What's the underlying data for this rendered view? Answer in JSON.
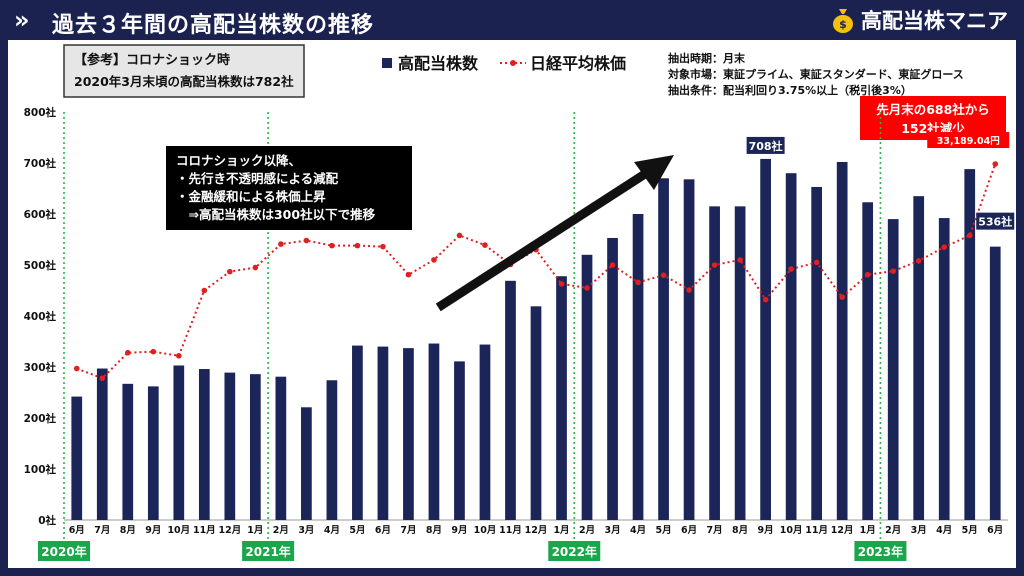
{
  "header": {
    "title": "過去３年間の高配当株数の推移",
    "brand": "高配当株マニア"
  },
  "notes": {
    "reference_line1": "【参考】コロナショック時",
    "reference_line2": "2020年3月末頃の高配当株数は782社",
    "callout_lines": [
      "コロナショック以降、",
      "・先行き不透明感による減配",
      "・金融緩和による株価上昇",
      "　⇒高配当株数は300社以下で推移"
    ],
    "red_box_line1": "先月末の688社から",
    "red_box_line2": "152社減少",
    "conditions": [
      "抽出時期：月末",
      "対象市場：東証プライム、東証スタンダード、東証グロース",
      "抽出条件：配当利回り3.75%以上（税引後3%）"
    ]
  },
  "colors": {
    "header_bg": "#1b2250",
    "bar": "#1b2557",
    "nikkei": "#e02020",
    "year_box": "#1aa64a",
    "red_box": "#ff0000",
    "divider": "#2db34a"
  },
  "chart_data": {
    "type": "bar",
    "categories": [
      "6月",
      "7月",
      "8月",
      "9月",
      "10月",
      "11月",
      "12月",
      "1月",
      "2月",
      "3月",
      "4月",
      "5月",
      "6月",
      "7月",
      "8月",
      "9月",
      "10月",
      "11月",
      "12月",
      "1月",
      "2月",
      "3月",
      "4月",
      "5月",
      "6月",
      "7月",
      "8月",
      "9月",
      "10月",
      "11月",
      "12月",
      "1月",
      "2月",
      "3月",
      "4月",
      "5月",
      "6月"
    ],
    "y_ticks": [
      "0社",
      "100社",
      "200社",
      "300社",
      "400社",
      "500社",
      "600社",
      "700社",
      "800社"
    ],
    "ylim": [
      0,
      800
    ],
    "legend": "top-center",
    "series": [
      {
        "name": "高配当株数",
        "type": "bar",
        "values": [
          242,
          297,
          267,
          262,
          303,
          296,
          289,
          286,
          281,
          221,
          274,
          342,
          340,
          337,
          346,
          311,
          344,
          469,
          419,
          478,
          520,
          553,
          600,
          670,
          668,
          615,
          615,
          708,
          680,
          653,
          702,
          623,
          590,
          635,
          592,
          688,
          536
        ]
      },
      {
        "name": "日経平均株価",
        "type": "line",
        "scale_note": "plotted on the same visual scale",
        "values": [
          297,
          278,
          328,
          330,
          322,
          450,
          487,
          495,
          541,
          548,
          538,
          538,
          536,
          481,
          510,
          558,
          539,
          501,
          530,
          463,
          455,
          500,
          466,
          480,
          451,
          500,
          510,
          432,
          492,
          505,
          437,
          481,
          488,
          508,
          535,
          558,
          698
        ]
      }
    ],
    "year_labels": [
      {
        "label": "2020年",
        "at_index": 0
      },
      {
        "label": "2021年",
        "at_index": 8
      },
      {
        "label": "2022年",
        "at_index": 20
      },
      {
        "label": "2023年",
        "at_index": 32
      }
    ],
    "annotations": [
      {
        "text": "708社",
        "series": "高配当株数",
        "index": 27
      },
      {
        "text": "536社",
        "series": "高配当株数",
        "index": 36
      },
      {
        "text": "33,189.04円",
        "series": "日経平均株価",
        "index": 36
      }
    ]
  }
}
